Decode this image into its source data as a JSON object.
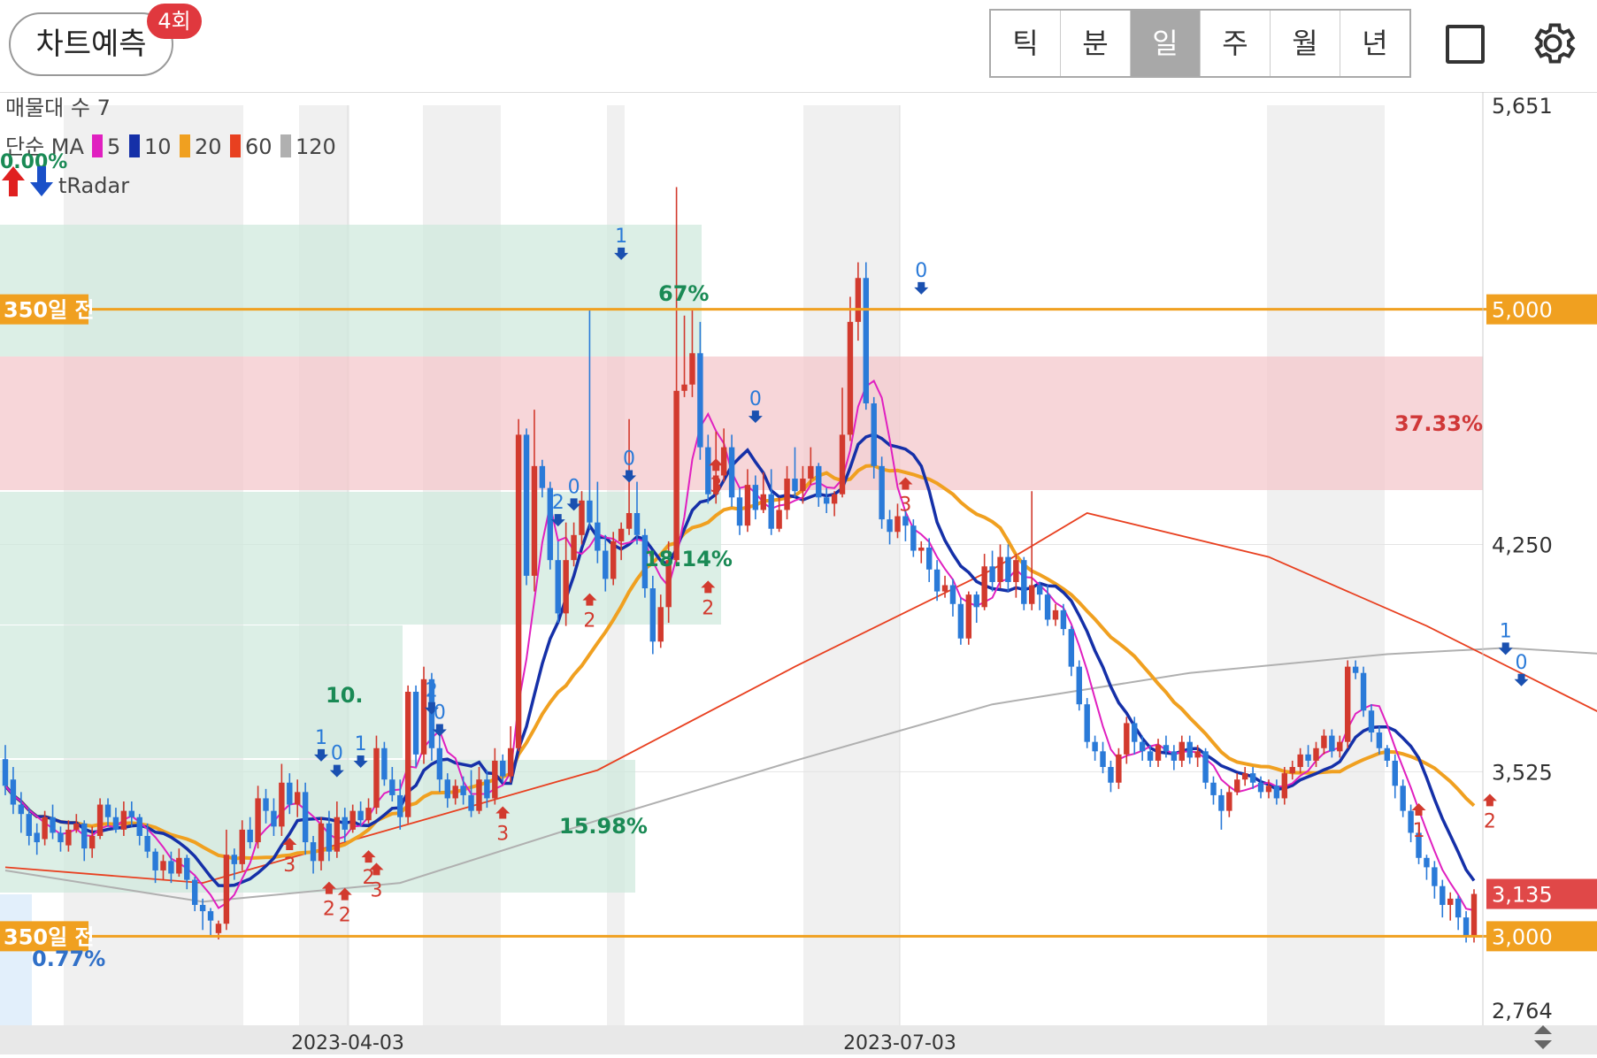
{
  "toolbar": {
    "predict_label": "차트예측",
    "predict_badge": "4회",
    "period_tabs": [
      "틱",
      "분",
      "일",
      "주",
      "월",
      "년"
    ],
    "active_tab": "일",
    "icons": [
      "square-icon",
      "gear-icon"
    ]
  },
  "legend": {
    "volume_profile_label": "매물대 수 7",
    "ma_label": "단순 MA",
    "ma_items": [
      {
        "period": "5",
        "color": "#e020c0"
      },
      {
        "period": "10",
        "color": "#1530a8"
      },
      {
        "period": "20",
        "color": "#f0a020"
      },
      {
        "period": "60",
        "color": "#e84020"
      },
      {
        "period": "120",
        "color": "#b0b0b0"
      }
    ],
    "radar_pct": "0.00%",
    "radar_label": "tRadar"
  },
  "chart_data": {
    "type": "candlestick",
    "x_ticks": [
      "2023-04-03",
      "2023-07-03"
    ],
    "y_ticks": [
      5651,
      5000,
      4250,
      3525,
      3135,
      3000,
      2764
    ],
    "ylim": [
      2764,
      5651
    ],
    "current_price": "3,135",
    "current_price_value": 3135,
    "reference_lines": [
      {
        "label": "350일 전",
        "value": 5000,
        "price_label": "5,000"
      },
      {
        "label": "350일 전",
        "value": 3000,
        "price_label": "3,000"
      }
    ],
    "zones": [
      {
        "pct": "37.33%",
        "color": "#f4c8cc"
      },
      {
        "pct": "67%",
        "color": "#cde8dc"
      },
      {
        "pct": "18.14%",
        "color": "#cde8dc"
      },
      {
        "pct": "10.",
        "color": "#cde8dc"
      },
      {
        "pct": "15.98%",
        "color": "#cde8dc"
      },
      {
        "pct": "0.77%",
        "color": "#d6e8fa"
      }
    ],
    "axis_y_labels": [
      "5,651",
      "5,000",
      "4,250",
      "3,525",
      "3,135",
      "3,000",
      "2,764"
    ],
    "markers": [
      {
        "label": "1",
        "type": "down",
        "i": 78,
        "p": 5180
      },
      {
        "label": "0",
        "type": "down",
        "i": 116,
        "p": 5070
      },
      {
        "label": "0",
        "type": "down",
        "i": 95,
        "p": 4660
      },
      {
        "label": "0",
        "type": "down",
        "i": 79,
        "p": 4470
      },
      {
        "label": "0",
        "type": "down",
        "i": 72,
        "p": 4380
      },
      {
        "label": "2",
        "type": "down",
        "i": 70,
        "p": 4330
      },
      {
        "label": "1",
        "type": "down",
        "i": 190,
        "p": 3920
      },
      {
        "label": "0",
        "type": "down",
        "i": 192,
        "p": 3820
      },
      {
        "label": "2",
        "type": "down",
        "i": 54,
        "p": 3730
      },
      {
        "label": "0",
        "type": "down",
        "i": 55,
        "p": 3660
      },
      {
        "label": "1",
        "type": "down",
        "i": 40,
        "p": 3580
      },
      {
        "label": "1",
        "type": "down",
        "i": 45,
        "p": 3560
      },
      {
        "label": "0",
        "type": "down",
        "i": 42,
        "p": 3530
      },
      {
        "label": "3",
        "type": "up",
        "i": 90,
        "p": 4530
      },
      {
        "label": "3",
        "type": "up",
        "i": 114,
        "p": 4470
      },
      {
        "label": "2",
        "type": "up",
        "i": 89,
        "p": 4140
      },
      {
        "label": "2",
        "type": "up",
        "i": 74,
        "p": 4100
      },
      {
        "label": "3",
        "type": "up",
        "i": 63,
        "p": 3420
      },
      {
        "label": "2",
        "type": "up",
        "i": 188,
        "p": 3460
      },
      {
        "label": "1",
        "type": "up",
        "i": 179,
        "p": 3430
      },
      {
        "label": "3",
        "type": "up",
        "i": 36,
        "p": 3320
      },
      {
        "label": "2",
        "type": "up",
        "i": 46,
        "p": 3280
      },
      {
        "label": "3",
        "type": "up",
        "i": 47,
        "p": 3240
      },
      {
        "label": "2",
        "type": "up",
        "i": 41,
        "p": 3180
      },
      {
        "label": "2",
        "type": "up",
        "i": 43,
        "p": 3160
      }
    ],
    "candles": [
      [
        3565,
        3480,
        3610,
        3450
      ],
      [
        3500,
        3420,
        3540,
        3390
      ],
      [
        3420,
        3390,
        3460,
        3330
      ],
      [
        3390,
        3320,
        3410,
        3290
      ],
      [
        3330,
        3300,
        3360,
        3260
      ],
      [
        3310,
        3380,
        3400,
        3290
      ],
      [
        3380,
        3330,
        3420,
        3310
      ],
      [
        3330,
        3300,
        3350,
        3270
      ],
      [
        3290,
        3340,
        3370,
        3270
      ],
      [
        3340,
        3360,
        3390,
        3330
      ],
      [
        3360,
        3280,
        3370,
        3240
      ],
      [
        3280,
        3320,
        3350,
        3250
      ],
      [
        3320,
        3420,
        3440,
        3310
      ],
      [
        3420,
        3380,
        3440,
        3350
      ],
      [
        3380,
        3340,
        3410,
        3330
      ],
      [
        3340,
        3400,
        3430,
        3320
      ],
      [
        3400,
        3380,
        3430,
        3350
      ],
      [
        3380,
        3320,
        3390,
        3290
      ],
      [
        3320,
        3270,
        3360,
        3250
      ],
      [
        3270,
        3210,
        3280,
        3170
      ],
      [
        3210,
        3240,
        3260,
        3180
      ],
      [
        3240,
        3200,
        3270,
        3170
      ],
      [
        3200,
        3250,
        3280,
        3190
      ],
      [
        3250,
        3180,
        3260,
        3150
      ],
      [
        3180,
        3100,
        3190,
        3080
      ],
      [
        3100,
        3080,
        3120,
        3020
      ],
      [
        3080,
        3050,
        3090,
        3000
      ],
      [
        3010,
        3040,
        3050,
        2990
      ],
      [
        3040,
        3260,
        3340,
        3020
      ],
      [
        3260,
        3230,
        3280,
        3180
      ],
      [
        3230,
        3340,
        3370,
        3210
      ],
      [
        3340,
        3300,
        3380,
        3280
      ],
      [
        3300,
        3440,
        3480,
        3280
      ],
      [
        3440,
        3400,
        3470,
        3360
      ],
      [
        3400,
        3350,
        3440,
        3320
      ],
      [
        3350,
        3490,
        3550,
        3320
      ],
      [
        3490,
        3420,
        3520,
        3390
      ],
      [
        3420,
        3460,
        3500,
        3380
      ],
      [
        3460,
        3300,
        3490,
        3260
      ],
      [
        3300,
        3240,
        3320,
        3200
      ],
      [
        3240,
        3360,
        3380,
        3210
      ],
      [
        3360,
        3270,
        3400,
        3240
      ],
      [
        3270,
        3380,
        3430,
        3250
      ],
      [
        3380,
        3340,
        3410,
        3300
      ],
      [
        3340,
        3400,
        3420,
        3330
      ],
      [
        3400,
        3370,
        3430,
        3350
      ],
      [
        3370,
        3410,
        3440,
        3360
      ],
      [
        3410,
        3600,
        3640,
        3390
      ],
      [
        3600,
        3500,
        3620,
        3480
      ],
      [
        3500,
        3450,
        3540,
        3430
      ],
      [
        3450,
        3380,
        3500,
        3340
      ],
      [
        3380,
        3780,
        3800,
        3360
      ],
      [
        3780,
        3580,
        3800,
        3540
      ],
      [
        3580,
        3820,
        3860,
        3550
      ],
      [
        3820,
        3600,
        3840,
        3560
      ],
      [
        3600,
        3500,
        3640,
        3460
      ],
      [
        3500,
        3440,
        3520,
        3410
      ],
      [
        3440,
        3480,
        3500,
        3420
      ],
      [
        3480,
        3450,
        3510,
        3420
      ],
      [
        3450,
        3400,
        3530,
        3380
      ],
      [
        3400,
        3500,
        3540,
        3390
      ],
      [
        3500,
        3440,
        3530,
        3410
      ],
      [
        3440,
        3560,
        3600,
        3420
      ],
      [
        3560,
        3510,
        3580,
        3490
      ],
      [
        3510,
        3600,
        3670,
        3490
      ],
      [
        3600,
        4600,
        4650,
        3590
      ],
      [
        4600,
        4150,
        4620,
        4120
      ],
      [
        4150,
        4500,
        4680,
        4100
      ],
      [
        4500,
        4430,
        4520,
        4400
      ],
      [
        4430,
        4200,
        4450,
        4170
      ],
      [
        4200,
        4030,
        4260,
        4000
      ],
      [
        4030,
        4200,
        4320,
        3990
      ],
      [
        4200,
        4280,
        4320,
        4180
      ],
      [
        4280,
        4390,
        4420,
        4250
      ],
      [
        4390,
        4320,
        5000,
        4300
      ],
      [
        4320,
        4230,
        4450,
        4190
      ],
      [
        4230,
        4140,
        4280,
        4100
      ],
      [
        4140,
        4260,
        4290,
        4120
      ],
      [
        4260,
        4300,
        4320,
        4200
      ],
      [
        4300,
        4350,
        4650,
        4280
      ],
      [
        4350,
        4280,
        4450,
        4250
      ],
      [
        4280,
        4110,
        4300,
        4080
      ],
      [
        4110,
        3940,
        4150,
        3900
      ],
      [
        3940,
        4050,
        4090,
        3920
      ],
      [
        4050,
        4200,
        4260,
        4000
      ],
      [
        4200,
        4740,
        5390,
        4180
      ],
      [
        4740,
        4760,
        4980,
        4720
      ],
      [
        4760,
        4860,
        5000,
        4720
      ],
      [
        4860,
        4560,
        4960,
        4520
      ],
      [
        4560,
        4410,
        4600,
        4380
      ],
      [
        4410,
        4470,
        4610,
        4380
      ],
      [
        4470,
        4560,
        4620,
        4450
      ],
      [
        4560,
        4400,
        4600,
        4370
      ],
      [
        4400,
        4310,
        4430,
        4280
      ],
      [
        4310,
        4440,
        4490,
        4290
      ],
      [
        4440,
        4360,
        4470,
        4330
      ],
      [
        4360,
        4410,
        4480,
        4350
      ],
      [
        4410,
        4300,
        4490,
        4280
      ],
      [
        4300,
        4360,
        4400,
        4290
      ],
      [
        4360,
        4460,
        4500,
        4330
      ],
      [
        4460,
        4420,
        4560,
        4400
      ],
      [
        4420,
        4460,
        4500,
        4380
      ],
      [
        4460,
        4500,
        4560,
        4440
      ],
      [
        4500,
        4400,
        4510,
        4370
      ],
      [
        4400,
        4380,
        4430,
        4350
      ],
      [
        4380,
        4410,
        4420,
        4340
      ],
      [
        4410,
        4600,
        4750,
        4400
      ],
      [
        4600,
        4960,
        5040,
        4580
      ],
      [
        4960,
        5100,
        5150,
        4900
      ],
      [
        5100,
        4700,
        5150,
        4680
      ],
      [
        4700,
        4500,
        4720,
        4460
      ],
      [
        4500,
        4330,
        4530,
        4300
      ],
      [
        4330,
        4290,
        4360,
        4250
      ],
      [
        4290,
        4340,
        4380,
        4270
      ],
      [
        4340,
        4310,
        4360,
        4260
      ],
      [
        4310,
        4230,
        4330,
        4210
      ],
      [
        4230,
        4240,
        4260,
        4190
      ],
      [
        4240,
        4170,
        4270,
        4130
      ],
      [
        4170,
        4100,
        4200,
        4070
      ],
      [
        4100,
        4120,
        4150,
        4080
      ],
      [
        4120,
        4060,
        4140,
        4020
      ],
      [
        4060,
        3950,
        4080,
        3930
      ],
      [
        3950,
        4090,
        4100,
        3930
      ],
      [
        4090,
        4050,
        4100,
        4000
      ],
      [
        4050,
        4180,
        4220,
        4040
      ],
      [
        4180,
        4130,
        4230,
        4100
      ],
      [
        4130,
        4210,
        4250,
        4110
      ],
      [
        4210,
        4130,
        4250,
        4100
      ],
      [
        4130,
        4200,
        4220,
        4080
      ],
      [
        4200,
        4060,
        4210,
        4040
      ],
      [
        4060,
        4120,
        4420,
        4040
      ],
      [
        4120,
        4090,
        4130,
        4040
      ],
      [
        4090,
        4010,
        4120,
        3990
      ],
      [
        4010,
        4040,
        4060,
        3990
      ],
      [
        4040,
        3980,
        4060,
        3960
      ],
      [
        3980,
        3860,
        3990,
        3830
      ],
      [
        3860,
        3740,
        3880,
        3720
      ],
      [
        3740,
        3620,
        3760,
        3600
      ],
      [
        3620,
        3590,
        3640,
        3560
      ],
      [
        3590,
        3540,
        3620,
        3520
      ],
      [
        3540,
        3490,
        3560,
        3460
      ],
      [
        3490,
        3580,
        3600,
        3470
      ],
      [
        3580,
        3680,
        3700,
        3550
      ],
      [
        3680,
        3620,
        3700,
        3580
      ],
      [
        3620,
        3590,
        3640,
        3560
      ],
      [
        3590,
        3560,
        3610,
        3540
      ],
      [
        3560,
        3610,
        3630,
        3540
      ],
      [
        3610,
        3590,
        3640,
        3570
      ],
      [
        3590,
        3560,
        3610,
        3530
      ],
      [
        3560,
        3620,
        3640,
        3540
      ],
      [
        3620,
        3570,
        3640,
        3550
      ],
      [
        3570,
        3590,
        3610,
        3540
      ],
      [
        3590,
        3490,
        3600,
        3470
      ],
      [
        3490,
        3450,
        3510,
        3420
      ],
      [
        3450,
        3400,
        3470,
        3340
      ],
      [
        3400,
        3460,
        3480,
        3380
      ],
      [
        3460,
        3500,
        3520,
        3450
      ],
      [
        3500,
        3520,
        3540,
        3480
      ],
      [
        3520,
        3490,
        3540,
        3470
      ],
      [
        3490,
        3460,
        3510,
        3440
      ],
      [
        3460,
        3480,
        3500,
        3440
      ],
      [
        3480,
        3440,
        3500,
        3420
      ],
      [
        3440,
        3520,
        3540,
        3420
      ],
      [
        3520,
        3540,
        3560,
        3500
      ],
      [
        3540,
        3580,
        3600,
        3520
      ],
      [
        3580,
        3560,
        3610,
        3540
      ],
      [
        3560,
        3600,
        3620,
        3540
      ],
      [
        3600,
        3640,
        3660,
        3580
      ],
      [
        3640,
        3590,
        3660,
        3570
      ],
      [
        3590,
        3620,
        3640,
        3570
      ],
      [
        3620,
        3860,
        3880,
        3600
      ],
      [
        3860,
        3840,
        3880,
        3820
      ],
      [
        3840,
        3720,
        3860,
        3700
      ],
      [
        3720,
        3650,
        3740,
        3620
      ],
      [
        3650,
        3600,
        3670,
        3580
      ],
      [
        3600,
        3560,
        3610,
        3540
      ],
      [
        3560,
        3480,
        3580,
        3440
      ],
      [
        3480,
        3400,
        3500,
        3380
      ],
      [
        3400,
        3330,
        3420,
        3300
      ],
      [
        3330,
        3250,
        3340,
        3230
      ],
      [
        3250,
        3220,
        3260,
        3180
      ],
      [
        3220,
        3160,
        3240,
        3120
      ],
      [
        3160,
        3100,
        3180,
        3060
      ],
      [
        3100,
        3120,
        3140,
        3050
      ],
      [
        3120,
        3060,
        3130,
        3020
      ],
      [
        3060,
        3000,
        3080,
        2980
      ],
      [
        3000,
        3135,
        3150,
        2980
      ]
    ],
    "ma120": [
      [
        0,
        3210
      ],
      [
        25,
        3110
      ],
      [
        50,
        3170
      ],
      [
        75,
        3370
      ],
      [
        100,
        3560
      ],
      [
        125,
        3740
      ],
      [
        150,
        3840
      ],
      [
        175,
        3900
      ],
      [
        190,
        3920
      ],
      [
        203,
        3900
      ]
    ],
    "ma60": [
      [
        0,
        3220
      ],
      [
        25,
        3170
      ],
      [
        50,
        3350
      ],
      [
        75,
        3530
      ],
      [
        100,
        3860
      ],
      [
        125,
        4170
      ],
      [
        137,
        4350
      ],
      [
        160,
        4210
      ],
      [
        180,
        3990
      ],
      [
        203,
        3700
      ]
    ]
  }
}
